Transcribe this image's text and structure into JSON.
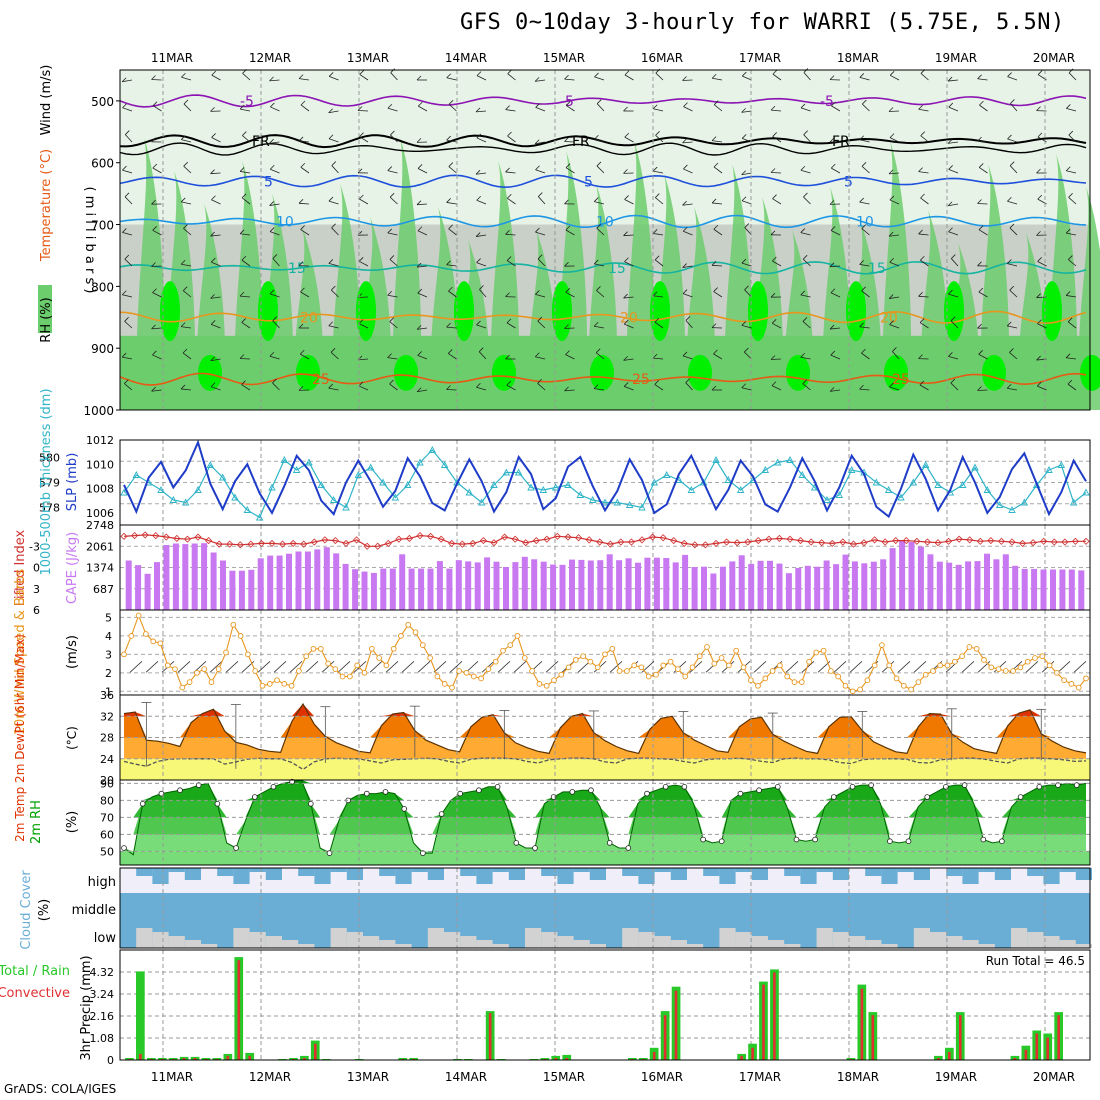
{
  "title": "GFS 0~10day 3-hourly for WARRI (5.75E, 5.5N)",
  "credit": "GrADS: COLA/IGES",
  "run_total_label": "Run Total = 46.5",
  "colors": {
    "rh_light": "#e6f3e6",
    "rh_grey": "#c8d0c8",
    "rh_mid": "#6ccd6c",
    "rh_bright": "#00f000",
    "cape": "#c878f0",
    "lifted": "#d03030",
    "slp": "#1e3cc8",
    "thick": "#30b4c8",
    "wind": "#e8961e",
    "temp_hot": "#e03200",
    "temp_mid": "#f07800",
    "temp_warm": "#ffaa32",
    "temp_dew": "#f8f878",
    "rh2m_dark": "#00a000",
    "rh2m_light": "#78dc78",
    "cloud": "#6aaed6",
    "precip_total": "#28c828",
    "precip_conv": "#e03030"
  },
  "chart_data": [
    {
      "panel": "upper-air",
      "type": "heatmap",
      "dates": [
        "11MAR",
        "12MAR",
        "13MAR",
        "14MAR",
        "15MAR",
        "16MAR",
        "17MAR",
        "18MAR",
        "19MAR",
        "20MAR"
      ],
      "ylabel_parts": [
        "RH (%)",
        "Temperature (°C)",
        "Wind (m/s)"
      ],
      "ylabel_units": "( m i l l i b a r s )",
      "pressure_ticks": [
        "500",
        "600",
        "700",
        "800",
        "900",
        "1000"
      ],
      "pressure_range": [
        450,
        1000
      ],
      "temp_contours": [
        {
          "label": "-5",
          "p": 500,
          "color": "#8c14b4"
        },
        {
          "label": "FR",
          "p": 565,
          "color": "#000000"
        },
        {
          "label": "5",
          "p": 630,
          "color": "#1e50dc"
        },
        {
          "label": "10",
          "p": 695,
          "color": "#1e96e6"
        },
        {
          "label": "15",
          "p": 770,
          "color": "#14b4a0"
        },
        {
          "label": "20",
          "p": 850,
          "color": "#e8961e"
        },
        {
          "label": "25",
          "p": 950,
          "color": "#e65a14"
        }
      ]
    },
    {
      "panel": "slp-thickness",
      "type": "line",
      "ylabel_left": "1000-500mb Thickness (dm)",
      "ylabel_right": "SLP (mb)",
      "thick_ticks": [
        "580",
        "579",
        "578"
      ],
      "slp_ticks": [
        "1012",
        "1010",
        "1008",
        "1006"
      ],
      "slp_range": [
        1005,
        1012
      ],
      "thick_range": [
        577.3,
        580.7
      ],
      "slp": [
        1008.3,
        1006.1,
        1008.9,
        1010.2,
        1008.1,
        1009.5,
        1011.8,
        1008.4,
        1006.3,
        1008.6,
        1010.0,
        1007.6,
        1006.0,
        1008.2,
        1010.7,
        1009.5,
        1007.0,
        1005.9,
        1008.5,
        1010.3,
        1008.6,
        1006.5,
        1007.8,
        1010.5,
        1009.0,
        1006.8,
        1006.2,
        1008.4,
        1010.4,
        1008.6,
        1006.1,
        1007.7,
        1010.6,
        1009.2,
        1006.3,
        1007.2,
        1009.8,
        1010.6,
        1008.2,
        1006.2,
        1007.8,
        1010.4,
        1008.7,
        1006.0,
        1006.7,
        1009.2,
        1010.7,
        1008.5,
        1006.3,
        1007.9,
        1010.3,
        1009.0,
        1006.7,
        1006.1,
        1008.1,
        1010.5,
        1008.6,
        1006.2,
        1008.1,
        1010.7,
        1009.2,
        1006.5,
        1005.7,
        1008.0,
        1010.8,
        1008.8,
        1006.2,
        1007.9,
        1010.6,
        1008.5,
        1006.0,
        1007.3,
        1009.6,
        1010.9,
        1008.4,
        1005.9,
        1007.7,
        1010.3,
        1008.6
      ],
      "thickness": [
        578.6,
        579.3,
        579.0,
        578.7,
        578.3,
        578.2,
        578.7,
        579.7,
        579.2,
        578.4,
        577.9,
        577.6,
        578.8,
        579.9,
        579.5,
        579.8,
        578.9,
        578.3,
        578.0,
        579.3,
        579.6,
        579.0,
        578.4,
        578.9,
        579.8,
        580.3,
        579.7,
        579.0,
        578.6,
        578.2,
        578.9,
        579.4,
        579.4,
        578.8,
        578.7,
        578.8,
        578.9,
        578.5,
        578.3,
        578.2,
        578.2,
        578.1,
        578.0,
        579.0,
        579.3,
        579.1,
        578.7,
        579.0,
        579.9,
        579.1,
        578.7,
        579.1,
        579.5,
        579.8,
        579.9,
        579.3,
        578.8,
        578.3,
        578.5,
        579.5,
        579.4,
        579.0,
        578.7,
        578.4,
        579.0,
        579.7,
        578.9,
        578.6,
        578.9,
        579.6,
        578.7,
        578.1,
        577.9,
        578.2,
        578.9,
        579.5,
        579.7,
        578.2,
        578.6
      ]
    },
    {
      "panel": "cape-lifted",
      "type": "bar",
      "ylabel_left": "Lifted Index",
      "ylabel_right": "CAPE (J/kg)",
      "li_ticks": [
        "-3",
        "0",
        "3",
        "6"
      ],
      "cape_ticks": [
        "2748",
        "2061",
        "1374",
        "687"
      ],
      "cape_range": [
        0,
        2748
      ],
      "li_range": [
        -6,
        6
      ],
      "cape": [
        1600,
        1450,
        1170,
        1550,
        2100,
        2150,
        2130,
        2150,
        2160,
        1860,
        1600,
        1270,
        1270,
        1300,
        1670,
        1760,
        1760,
        1820,
        1890,
        1890,
        1960,
        2030,
        1830,
        1490,
        1320,
        1240,
        1200,
        1340,
        1340,
        1800,
        1340,
        1340,
        1340,
        1580,
        1340,
        1610,
        1570,
        1540,
        1700,
        1560,
        1390,
        1550,
        1720,
        1640,
        1560,
        1470,
        1460,
        1630,
        1620,
        1600,
        1610,
        1800,
        1610,
        1670,
        1530,
        1690,
        1690,
        1680,
        1540,
        1780,
        1390,
        1400,
        1180,
        1400,
        1570,
        1770,
        1490,
        1590,
        1590,
        1500,
        1190,
        1360,
        1430,
        1400,
        1600,
        1480,
        1790,
        1570,
        1510,
        1560,
        1640,
        2000,
        2250,
        2200,
        2050,
        1800,
        1560,
        1530,
        1460,
        1570,
        1580,
        1820,
        1640,
        1800,
        1430,
        1330,
        1330,
        1310,
        1310,
        1310,
        1310,
        1280
      ],
      "lifted": [
        -4.4,
        -4.5,
        -4.6,
        -4.5,
        -4.3,
        -4.1,
        -4.0,
        -4.3,
        -3.8,
        -3.3,
        -3.3,
        -3.2,
        -3.3,
        -3.4,
        -3.4,
        -3.3,
        -3.4,
        -3.3,
        -3.6,
        -3.9,
        -3.8,
        -3.4,
        -3.9,
        -3.0,
        -3.0,
        -3.4,
        -4.0,
        -4.1,
        -4.5,
        -4.4,
        -4.0,
        -3.4,
        -3.3,
        -3.4,
        -3.8,
        -3.5,
        -4.3,
        -4.0,
        -3.5,
        -3.8,
        -4.0,
        -4.4,
        -4.3,
        -4.2,
        -3.9,
        -3.6,
        -3.3,
        -3.6,
        -3.6,
        -3.9,
        -4.3,
        -4.2,
        -3.8,
        -3.4,
        -3.2,
        -3.2,
        -3.4,
        -3.6,
        -3.5,
        -3.6,
        -3.8,
        -4.0,
        -4.1,
        -4.0,
        -3.8,
        -3.6,
        -3.5,
        -3.4,
        -3.6,
        -3.3,
        -3.5,
        -3.9,
        -3.6,
        -3.8,
        -3.8,
        -3.7,
        -3.6,
        -3.5,
        -3.7,
        -4.0,
        -3.9,
        -3.7,
        -3.8,
        -3.7,
        -3.6,
        -3.4,
        -3.5,
        -3.7,
        -3.6,
        -3.6,
        -3.7,
        -3.7
      ]
    },
    {
      "panel": "wind-10m",
      "type": "line",
      "ylabel_left": "10m Wind Speed & Barbs",
      "ylabel_right": "(m/s)",
      "ticks": [
        "5",
        "4",
        "3",
        "2",
        "1"
      ],
      "range": [
        0.8,
        5.4
      ],
      "speed": [
        3.0,
        4.0,
        5.1,
        4.1,
        3.7,
        3.6,
        2.4,
        2.2,
        1.2,
        1.5,
        2.0,
        2.2,
        1.5,
        2.2,
        3.1,
        4.6,
        4.0,
        3.0,
        2.1,
        1.3,
        1.4,
        1.6,
        1.4,
        1.3,
        2.1,
        2.9,
        3.3,
        3.3,
        2.5,
        2.2,
        1.8,
        1.8,
        2.4,
        2.0,
        3.3,
        2.8,
        2.4,
        3.3,
        4.0,
        4.6,
        4.2,
        3.5,
        2.8,
        1.8,
        1.4,
        1.2,
        2.1,
        2.0,
        1.8,
        1.7,
        2.2,
        2.6,
        3.2,
        3.5,
        4.0,
        2.8,
        2.1,
        1.4,
        1.3,
        1.6,
        1.9,
        2.3,
        2.7,
        2.9,
        2.6,
        2.3,
        3.0,
        3.3,
        2.1,
        2.1,
        2.4,
        2.3,
        1.8,
        1.9,
        2.4,
        2.6,
        2.2,
        1.8,
        2.3,
        2.9,
        3.4,
        2.5,
        2.8,
        2.4,
        3.2,
        2.3,
        1.6,
        1.3,
        1.7,
        2.1,
        2.4,
        1.8,
        1.5,
        1.5,
        2.6,
        3.1,
        3.2,
        2.1,
        1.8,
        1.3,
        1.0,
        1.1,
        1.6,
        2.4,
        3.5,
        2.4,
        1.7,
        1.3,
        1.1,
        1.5,
        1.9,
        2.1,
        2.4,
        2.4,
        2.6,
        2.9,
        3.4,
        3.3,
        2.7,
        2.3,
        2.2,
        2.1,
        2.1,
        2.3,
        2.6,
        2.8,
        2.9,
        2.4,
        2.0,
        1.6,
        1.4,
        1.2,
        1.7
      ]
    },
    {
      "panel": "temp-2m",
      "type": "area",
      "ylabel_left": "2m Temp 2m DewPt (6hr Min/Max)",
      "ylabel_right": "(°C)",
      "ticks": [
        "36",
        "32",
        "28",
        "24",
        "20"
      ],
      "range": [
        20,
        36
      ],
      "temp": [
        32.5,
        32.8,
        27.5,
        27.3,
        26.9,
        26.3,
        30.8,
        32.5,
        33.3,
        29.2,
        27.1,
        26.6,
        25.8,
        25.4,
        25.2,
        31.0,
        34.3,
        30.5,
        28.2,
        27.0,
        26.2,
        25.4,
        25.1,
        30.2,
        32.4,
        32.7,
        29.3,
        27.5,
        26.6,
        25.7,
        25.3,
        30.0,
        31.8,
        32.3,
        28.9,
        27.0,
        26.1,
        25.4,
        25.0,
        29.8,
        32.0,
        32.5,
        28.9,
        27.4,
        26.3,
        25.5,
        25.0,
        29.5,
        31.6,
        32.0,
        28.9,
        27.5,
        26.5,
        25.5,
        25.2,
        30.0,
        31.5,
        31.8,
        28.6,
        27.3,
        26.3,
        25.4,
        25.0,
        30.0,
        31.8,
        31.9,
        29.3,
        27.2,
        26.2,
        25.3,
        25.0,
        30.0,
        32.5,
        32.4,
        28.7,
        27.1,
        25.9,
        25.4,
        25.0,
        30.2,
        32.6,
        33.2,
        28.7,
        27.3,
        26.2,
        25.5,
        25.1
      ],
      "dew": [
        23.5,
        23.0,
        22.6,
        23.5,
        23.9,
        24.0,
        24.0,
        24.0,
        24.0,
        23.0,
        23.4,
        23.9,
        24.1,
        24.0,
        24.0,
        23.3,
        22.0,
        23.4,
        24.0,
        24.1,
        24.0,
        24.0,
        23.6,
        23.2,
        23.8,
        23.9,
        24.0,
        24.1,
        24.0,
        23.5,
        23.2,
        23.9,
        24.1,
        24.1,
        24.1,
        24.0,
        23.5,
        23.2,
        23.8,
        24.0,
        24.1,
        24.1,
        24.0,
        23.4,
        23.2,
        24.0,
        24.1,
        24.1,
        24.0,
        23.9,
        23.5,
        23.2,
        23.8,
        24.0,
        24.0,
        24.1,
        23.9,
        23.5,
        23.3,
        24.0,
        24.1,
        24.0,
        24.0,
        23.8,
        23.3,
        23.1,
        23.8,
        24.0,
        24.0,
        24.0,
        23.9,
        23.3,
        23.2,
        23.8,
        24.0,
        24.1,
        24.1,
        23.9,
        23.5,
        23.2,
        24.0,
        24.1,
        24.1,
        24.0,
        23.8,
        23.5,
        23.6
      ],
      "maxbars": [
        {
          "i": 2,
          "hi": 34.6
        },
        {
          "i": 10,
          "hi": 34.2
        },
        {
          "i": 18,
          "hi": 33.8
        },
        {
          "i": 26,
          "hi": 33.9
        },
        {
          "i": 34,
          "hi": 33.1
        },
        {
          "i": 42,
          "hi": 33.0
        },
        {
          "i": 50,
          "hi": 32.9
        },
        {
          "i": 58,
          "hi": 32.6
        },
        {
          "i": 66,
          "hi": 32.9
        },
        {
          "i": 74,
          "hi": 33.4
        },
        {
          "i": 82,
          "hi": 33.3
        },
        {
          "i": 88,
          "hi": 33.0
        }
      ]
    },
    {
      "panel": "rh-2m",
      "type": "area",
      "ylabel_left": "2m RH",
      "ylabel_right": "(%)",
      "ticks": [
        "90",
        "80",
        "70",
        "60",
        "50"
      ],
      "range": [
        42,
        92
      ],
      "rh": [
        52,
        48,
        78,
        82,
        84,
        85,
        86,
        87,
        89,
        90,
        78,
        55,
        52,
        68,
        82,
        85,
        88,
        90,
        91,
        92,
        78,
        52,
        49,
        68,
        80,
        83,
        84,
        84,
        85,
        84,
        75,
        55,
        49,
        49,
        72,
        80,
        84,
        85,
        86,
        88,
        88,
        76,
        55,
        52,
        52,
        78,
        82,
        85,
        85,
        86,
        86,
        76,
        55,
        52,
        52,
        78,
        84,
        86,
        88,
        89,
        88,
        78,
        57,
        55,
        56,
        80,
        84,
        85,
        86,
        87,
        88,
        76,
        57,
        56,
        57,
        76,
        82,
        85,
        88,
        89,
        89,
        78,
        56,
        55,
        56,
        76,
        82,
        85,
        88,
        89,
        89,
        78,
        57,
        55,
        56,
        76,
        82,
        85,
        88,
        89,
        89,
        90,
        89,
        90
      ]
    },
    {
      "panel": "cloud-cover",
      "type": "area",
      "ylabel_left": "Cloud Cover",
      "ylabel_right": "(%)",
      "levels": [
        "high",
        "middle",
        "low"
      ]
    },
    {
      "panel": "precip",
      "type": "bar",
      "ylabel_left": "Total / Rain",
      "ylabel_left2": "Convective",
      "ylabel_right": "3hr Precip (mm)",
      "ticks": [
        "4.32",
        "3.24",
        "2.16",
        "1.08",
        "0"
      ],
      "range": [
        0,
        5.4
      ],
      "total": [
        0.1,
        4.35,
        0.1,
        0.1,
        0.1,
        0.15,
        0.15,
        0.1,
        0.1,
        0.3,
        5.05,
        0.35,
        0.0,
        0.0,
        0.05,
        0.1,
        0.2,
        0.95,
        0.05,
        0.0,
        0.0,
        0.05,
        0.0,
        0.0,
        0.0,
        0.1,
        0.1,
        0.0,
        0.0,
        0.0,
        0.05,
        0.05,
        0.0,
        2.4,
        0.05,
        0.0,
        0.0,
        0.05,
        0.1,
        0.2,
        0.25,
        0.0,
        0.0,
        0.0,
        0.0,
        0.0,
        0.1,
        0.1,
        0.6,
        2.4,
        3.6,
        0.0,
        0.0,
        0.0,
        0.0,
        0.0,
        0.3,
        0.8,
        3.85,
        4.45,
        0.0,
        0.0,
        0.0,
        0.0,
        0.0,
        0.0,
        0.1,
        3.7,
        2.35,
        0.0,
        0.0,
        0.0,
        0.0,
        0.0,
        0.2,
        0.6,
        2.35,
        0.0,
        0.0,
        0.0,
        0.0,
        0.2,
        0.7,
        1.45,
        1.3,
        2.35,
        0.0,
        0.0
      ],
      "conv": [
        0.05,
        0.3,
        0.05,
        0.05,
        0.05,
        0.1,
        0.1,
        0.05,
        0.05,
        0.2,
        4.9,
        0.2,
        0.0,
        0.0,
        0.0,
        0.05,
        0.1,
        0.8,
        0.0,
        0.0,
        0.0,
        0.0,
        0.0,
        0.0,
        0.0,
        0.05,
        0.05,
        0.0,
        0.0,
        0.0,
        0.0,
        0.0,
        0.0,
        2.3,
        0.0,
        0.0,
        0.0,
        0.0,
        0.05,
        0.1,
        0.1,
        0.0,
        0.0,
        0.0,
        0.0,
        0.0,
        0.05,
        0.05,
        0.4,
        2.2,
        3.4,
        0.0,
        0.0,
        0.0,
        0.0,
        0.0,
        0.2,
        0.6,
        3.7,
        4.3,
        0.0,
        0.0,
        0.0,
        0.0,
        0.0,
        0.0,
        0.05,
        3.5,
        2.2,
        0.0,
        0.0,
        0.0,
        0.0,
        0.0,
        0.1,
        0.4,
        2.2,
        0.0,
        0.0,
        0.0,
        0.0,
        0.1,
        0.5,
        1.3,
        1.1,
        2.2,
        0.0,
        0.0
      ]
    }
  ]
}
